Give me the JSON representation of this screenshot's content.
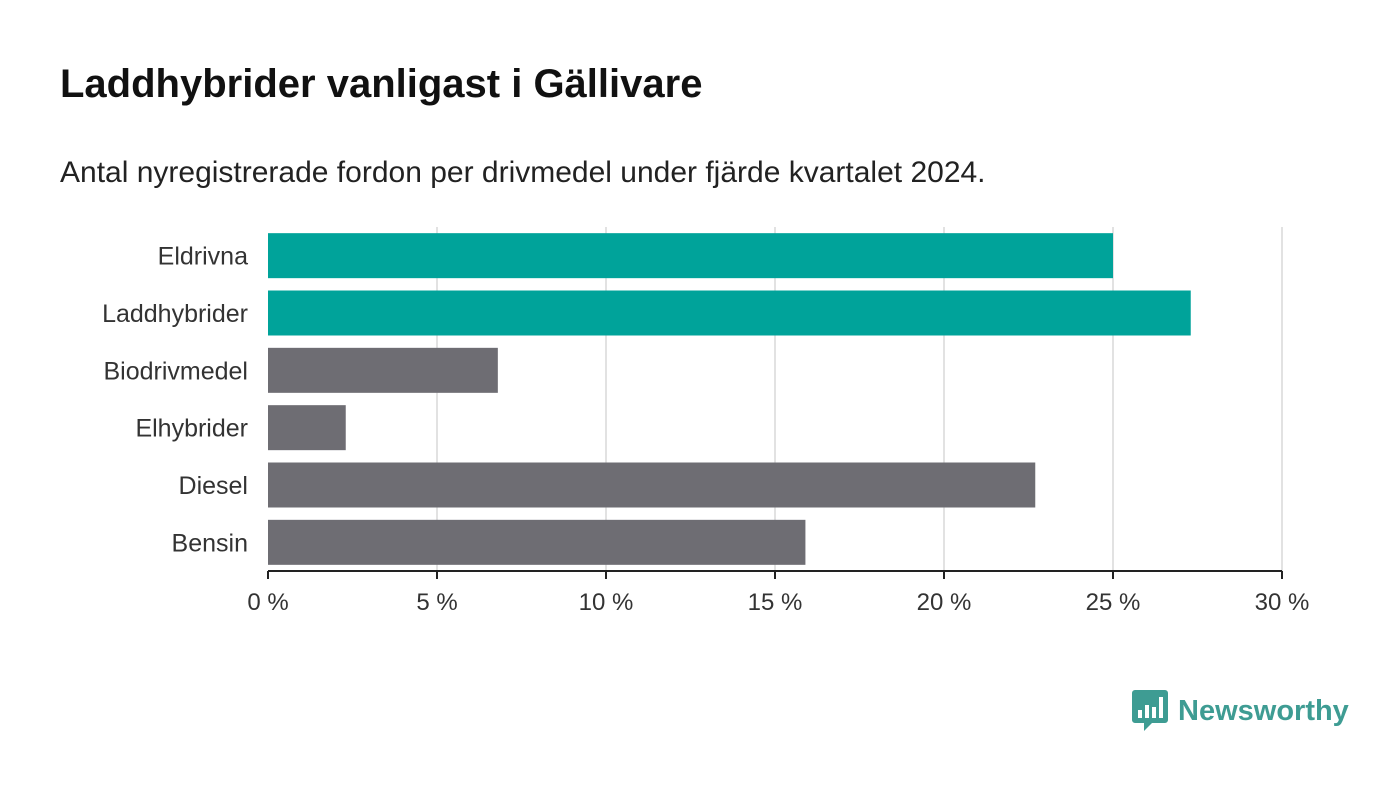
{
  "title": "Laddhybrider vanligast i Gällivare",
  "subtitle": "Antal nyregistrerade fordon per drivmedel under fjärde kvartalet 2024.",
  "chart_data": {
    "type": "bar",
    "orientation": "horizontal",
    "categories": [
      "Eldrivna",
      "Laddhybrider",
      "Biodrivmedel",
      "Elhybrider",
      "Diesel",
      "Bensin"
    ],
    "values": [
      25.0,
      27.3,
      6.8,
      2.3,
      22.7,
      15.9
    ],
    "bar_colors": [
      "#00a39a",
      "#00a39a",
      "#6e6d73",
      "#6e6d73",
      "#6e6d73",
      "#6e6d73"
    ],
    "xlim": [
      0,
      30
    ],
    "x_ticks": [
      0,
      5,
      10,
      15,
      20,
      25,
      30
    ],
    "x_tick_labels": [
      "0 %",
      "5 %",
      "10 %",
      "15 %",
      "20 %",
      "25 %",
      "30 %"
    ],
    "grid": "vertical"
  },
  "brand": {
    "name": "Newsworthy",
    "color": "#3e9c93",
    "icon": "chart-speech-bubble-icon"
  }
}
